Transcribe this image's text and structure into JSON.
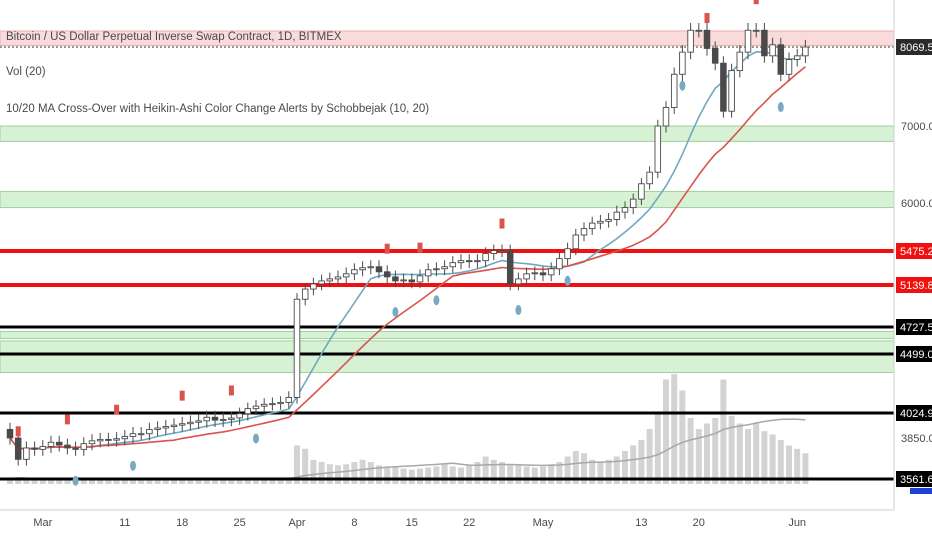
{
  "legend": {
    "symbol_line": "Bitcoin / US Dollar Perpetual Inverse Swap Contract, 1D, BITMEX",
    "volume_line": "Vol (20)",
    "indicator_line": "10/20 MA Cross-Over with Heikin-Ashi Color Change Alerts by Schobbejak (10, 20)"
  },
  "colors": {
    "up_candle": "#ffffff",
    "down_candle": "#4a4a4a",
    "ma10": "#6fa8bf",
    "ma20": "#d9534f",
    "green_zone": "#d6f1d3",
    "red_zone": "#fadbdb",
    "red_line": "#f01010",
    "black_line": "#000000",
    "volume": "#d3d3d3",
    "volume_ma": "#a8a8a8",
    "signal_up": "#7aaac2",
    "signal_down": "#d9534f"
  },
  "chart_data": {
    "type": "candlestick",
    "title": "Bitcoin / US Dollar Perpetual Inverse Swap Contract, 1D, BITMEX",
    "x_tick_labels": [
      "Mar",
      "11",
      "18",
      "25",
      "Apr",
      "8",
      "15",
      "22",
      "May",
      "13",
      "20",
      "Jun"
    ],
    "x_tick_day_index": [
      4,
      14,
      21,
      28,
      35,
      42,
      49,
      56,
      65,
      77,
      84,
      96
    ],
    "y_tick_labels": [
      "7000.0",
      "6000.0",
      "3850.0"
    ],
    "y_tick_values": [
      7000,
      6000,
      3850
    ],
    "price_labels": [
      {
        "value": 8069.5,
        "text": "8069.5",
        "color": "#2b2b2b"
      },
      {
        "value": 5475.2,
        "text": "5475.2",
        "color": "#f01010"
      },
      {
        "value": 5139.8,
        "text": "5139.8",
        "color": "#f01010"
      },
      {
        "value": 4727.5,
        "text": "4727.5",
        "color": "#000000"
      },
      {
        "value": 4499.0,
        "text": "4499.0",
        "color": "#000000"
      },
      {
        "value": 4024.9,
        "text": "4024.9",
        "color": "#000000"
      },
      {
        "value": 3561.6,
        "text": "3561.6",
        "color": "#000000"
      }
    ],
    "green_zones": [
      [
        6800,
        7000
      ],
      [
        5950,
        6150
      ],
      [
        4350,
        4610
      ],
      [
        4630,
        4690
      ]
    ],
    "red_zone": [
      8090,
      8290
    ],
    "red_lines": [
      5475.2,
      5139.8
    ],
    "black_lines": [
      4727.5,
      4499.0,
      4024.9,
      3561.6
    ],
    "last_price": 8069.5,
    "closes": [
      3850,
      3700,
      3780,
      3770,
      3790,
      3820,
      3800,
      3780,
      3770,
      3810,
      3830,
      3840,
      3835,
      3845,
      3860,
      3880,
      3880,
      3910,
      3920,
      3930,
      3940,
      3950,
      3960,
      3970,
      3995,
      3975,
      3980,
      3990,
      4020,
      4060,
      4080,
      4095,
      4100,
      4110,
      4150,
      5000,
      5100,
      5150,
      5180,
      5200,
      5220,
      5250,
      5290,
      5310,
      5320,
      5270,
      5220,
      5180,
      5190,
      5170,
      5230,
      5290,
      5300,
      5320,
      5360,
      5380,
      5370,
      5380,
      5450,
      5480,
      5480,
      5150,
      5200,
      5250,
      5260,
      5240,
      5300,
      5400,
      5500,
      5650,
      5720,
      5780,
      5800,
      5820,
      5900,
      5950,
      6050,
      6250,
      6400,
      7000,
      7250,
      7700,
      8000,
      8300,
      8300,
      8050,
      7850,
      7200,
      7750,
      8000,
      8300,
      8300,
      7950,
      8100,
      7700,
      7900,
      7950,
      8069.5
    ],
    "volumes": [
      0.05,
      0.06,
      0.05,
      0.04,
      0.05,
      0.05,
      0.04,
      0.04,
      0.04,
      0.04,
      0.05,
      0.05,
      0.04,
      0.04,
      0.04,
      0.04,
      0.04,
      0.04,
      0.04,
      0.04,
      0.04,
      0.04,
      0.04,
      0.04,
      0.04,
      0.05,
      0.05,
      0.05,
      0.05,
      0.06,
      0.06,
      0.06,
      0.06,
      0.06,
      0.06,
      0.35,
      0.32,
      0.22,
      0.2,
      0.18,
      0.17,
      0.18,
      0.2,
      0.22,
      0.2,
      0.17,
      0.16,
      0.16,
      0.14,
      0.13,
      0.14,
      0.15,
      0.16,
      0.18,
      0.16,
      0.15,
      0.17,
      0.2,
      0.25,
      0.22,
      0.2,
      0.18,
      0.17,
      0.16,
      0.15,
      0.16,
      0.18,
      0.2,
      0.25,
      0.3,
      0.28,
      0.22,
      0.2,
      0.22,
      0.25,
      0.3,
      0.35,
      0.4,
      0.5,
      0.65,
      0.95,
      1,
      0.85,
      0.6,
      0.5,
      0.55,
      0.6,
      0.95,
      0.62,
      0.55,
      0.5,
      0.55,
      0.48,
      0.45,
      0.4,
      0.35,
      0.32,
      0.28
    ],
    "signals": [
      {
        "day": 1,
        "type": "down"
      },
      {
        "day": 7,
        "type": "down"
      },
      {
        "day": 8,
        "type": "up"
      },
      {
        "day": 13,
        "type": "down"
      },
      {
        "day": 15,
        "type": "up"
      },
      {
        "day": 21,
        "type": "down"
      },
      {
        "day": 27,
        "type": "down"
      },
      {
        "day": 30,
        "type": "up"
      },
      {
        "day": 46,
        "type": "down"
      },
      {
        "day": 47,
        "type": "up"
      },
      {
        "day": 50,
        "type": "down"
      },
      {
        "day": 52,
        "type": "up"
      },
      {
        "day": 60,
        "type": "down"
      },
      {
        "day": 62,
        "type": "up"
      },
      {
        "day": 68,
        "type": "up"
      },
      {
        "day": 82,
        "type": "up"
      },
      {
        "day": 85,
        "type": "down"
      },
      {
        "day": 91,
        "type": "down"
      },
      {
        "day": 94,
        "type": "up"
      }
    ]
  }
}
